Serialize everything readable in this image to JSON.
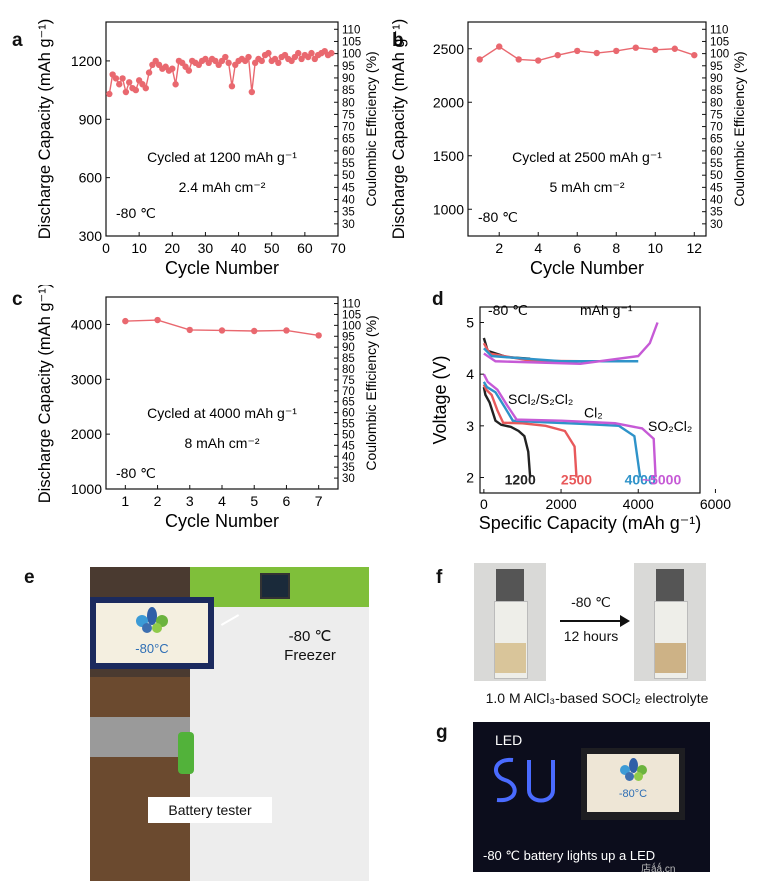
{
  "panel_labels": {
    "a": "a",
    "b": "b",
    "c": "c",
    "d": "d",
    "e": "e",
    "f": "f",
    "g": "g"
  },
  "colors": {
    "series": "#e9686f",
    "black": "#222222",
    "red": "#e8595b",
    "blue": "#2f93c9",
    "magenta": "#c65ad6"
  },
  "chart_data": [
    {
      "panel": "a",
      "type": "scatter",
      "xlabel": "Cycle Number",
      "ylabel": "Discharge Capacity (mAh g⁻¹)",
      "ylabel2": "Coulombic Efficiency (%)",
      "xlim": [
        0,
        70
      ],
      "ylim": [
        300,
        1400
      ],
      "y2lim": [
        25,
        113
      ],
      "xticks": [
        "0",
        "10",
        "20",
        "30",
        "40",
        "50",
        "60",
        "70"
      ],
      "yticks": [
        "300",
        "600",
        "900",
        "1200"
      ],
      "y2ticks": [
        "30",
        "35",
        "40",
        "45",
        "50",
        "55",
        "60",
        "65",
        "70",
        "75",
        "80",
        "85",
        "90",
        "95",
        "100",
        "105",
        "110"
      ],
      "annotations": [
        "Cycled at 1200 mAh g⁻¹",
        "2.4 mAh cm⁻²",
        "-80 ℃"
      ],
      "x": [
        1,
        2,
        3,
        4,
        5,
        6,
        7,
        8,
        9,
        10,
        11,
        12,
        13,
        14,
        15,
        16,
        17,
        18,
        19,
        20,
        21,
        22,
        23,
        24,
        25,
        26,
        27,
        28,
        29,
        30,
        31,
        32,
        33,
        34,
        35,
        36,
        37,
        38,
        39,
        40,
        41,
        42,
        43,
        44,
        45,
        46,
        47,
        48,
        49,
        50,
        51,
        52,
        53,
        54,
        55,
        56,
        57,
        58,
        59,
        60,
        61,
        62,
        63,
        64,
        65,
        66,
        67,
        68
      ],
      "y": [
        1030,
        1130,
        1110,
        1080,
        1110,
        1040,
        1090,
        1060,
        1050,
        1100,
        1080,
        1060,
        1140,
        1180,
        1200,
        1180,
        1160,
        1170,
        1150,
        1160,
        1080,
        1200,
        1190,
        1170,
        1150,
        1200,
        1190,
        1180,
        1200,
        1210,
        1190,
        1210,
        1200,
        1180,
        1200,
        1220,
        1190,
        1070,
        1180,
        1200,
        1210,
        1200,
        1220,
        1040,
        1190,
        1210,
        1200,
        1230,
        1240,
        1200,
        1210,
        1190,
        1220,
        1230,
        1210,
        1200,
        1220,
        1240,
        1210,
        1230,
        1220,
        1240,
        1210,
        1230,
        1240,
        1250,
        1230,
        1240
      ]
    },
    {
      "panel": "b",
      "type": "line",
      "xlabel": "Cycle Number",
      "ylabel": "Discharge Capacity (mAh g⁻¹)",
      "ylabel2": "Coulombic Efficiency (%)",
      "xlim": [
        0.4,
        12.6
      ],
      "ylim": [
        750,
        2750
      ],
      "y2lim": [
        25,
        113
      ],
      "xticks": [
        "2",
        "4",
        "6",
        "8",
        "10",
        "12"
      ],
      "yticks": [
        "1000",
        "1500",
        "2000",
        "2500"
      ],
      "y2ticks": [
        "30",
        "35",
        "40",
        "45",
        "50",
        "55",
        "60",
        "65",
        "70",
        "75",
        "80",
        "85",
        "90",
        "95",
        "100",
        "105",
        "110"
      ],
      "annotations": [
        "Cycled at 2500 mAh g⁻¹",
        "5 mAh cm⁻²",
        "-80 ℃"
      ],
      "x": [
        1,
        2,
        3,
        4,
        5,
        6,
        7,
        8,
        9,
        10,
        11,
        12
      ],
      "y": [
        2400,
        2520,
        2400,
        2390,
        2440,
        2480,
        2460,
        2480,
        2510,
        2490,
        2500,
        2440
      ]
    },
    {
      "panel": "c",
      "type": "line",
      "xlabel": "Cycle Number",
      "ylabel": "Discharge Capacity (mAh g⁻¹)",
      "ylabel2": "Coulombic Efficiency (%)",
      "xlim": [
        0.4,
        7.6
      ],
      "ylim": [
        1000,
        4500
      ],
      "y2lim": [
        25,
        113
      ],
      "xticks": [
        "1",
        "2",
        "3",
        "4",
        "5",
        "6",
        "7"
      ],
      "yticks": [
        "1000",
        "2000",
        "3000",
        "4000"
      ],
      "y2ticks": [
        "30",
        "35",
        "40",
        "45",
        "50",
        "55",
        "60",
        "65",
        "70",
        "75",
        "80",
        "85",
        "90",
        "95",
        "100",
        "105",
        "110"
      ],
      "annotations": [
        "Cycled at 4000 mAh g⁻¹",
        "8 mAh cm⁻²",
        "-80 ℃"
      ],
      "x": [
        1,
        2,
        3,
        4,
        5,
        6,
        7
      ],
      "y": [
        4060,
        4080,
        3900,
        3890,
        3880,
        3890,
        3800
      ]
    },
    {
      "panel": "d",
      "type": "line",
      "xlabel": "Specific Capacity (mAh g⁻¹)",
      "ylabel": "Voltage (V)",
      "xlim": [
        -100,
        5600
      ],
      "ylim": [
        1.7,
        5.3
      ],
      "xticks": [
        "0",
        "2000",
        "4000",
        "6000"
      ],
      "yticks": [
        "2",
        "3",
        "4",
        "5"
      ],
      "annotations": [
        "-80 ℃",
        "mAh g⁻¹",
        "SCl₂/S₂Cl₂",
        "Cl₂",
        "SO₂Cl₂"
      ],
      "series": [
        {
          "name": "1200",
          "color": "#222222",
          "discharge": [
            [
              0,
              3.75
            ],
            [
              40,
              3.6
            ],
            [
              150,
              3.45
            ],
            [
              300,
              3.1
            ],
            [
              450,
              3.02
            ],
            [
              700,
              2.98
            ],
            [
              900,
              2.9
            ],
            [
              1050,
              2.8
            ],
            [
              1150,
              2.5
            ],
            [
              1200,
              2.0
            ]
          ],
          "charge": [
            [
              0,
              4.7
            ],
            [
              100,
              4.45
            ],
            [
              600,
              4.33
            ],
            [
              1200,
              4.3
            ]
          ]
        },
        {
          "name": "2500",
          "color": "#e8595b",
          "discharge": [
            [
              0,
              3.8
            ],
            [
              60,
              3.7
            ],
            [
              200,
              3.6
            ],
            [
              350,
              3.3
            ],
            [
              500,
              3.06
            ],
            [
              1000,
              3.05
            ],
            [
              1600,
              3.0
            ],
            [
              2100,
              2.9
            ],
            [
              2350,
              2.6
            ],
            [
              2400,
              2.0
            ]
          ],
          "charge": [
            [
              0,
              4.6
            ],
            [
              150,
              4.4
            ],
            [
              1200,
              4.26
            ],
            [
              2500,
              4.25
            ]
          ]
        },
        {
          "name": "4000",
          "color": "#2f93c9",
          "discharge": [
            [
              0,
              3.85
            ],
            [
              80,
              3.75
            ],
            [
              300,
              3.65
            ],
            [
              550,
              3.35
            ],
            [
              750,
              3.1
            ],
            [
              1500,
              3.07
            ],
            [
              2500,
              3.04
            ],
            [
              3500,
              3.0
            ],
            [
              3900,
              2.8
            ],
            [
              4050,
              2.0
            ]
          ],
          "charge": [
            [
              0,
              4.5
            ],
            [
              200,
              4.35
            ],
            [
              2000,
              4.25
            ],
            [
              4000,
              4.25
            ]
          ]
        },
        {
          "name": "~5000",
          "color": "#c65ad6",
          "discharge": [
            [
              0,
              4.0
            ],
            [
              100,
              3.85
            ],
            [
              350,
              3.7
            ],
            [
              600,
              3.4
            ],
            [
              850,
              3.12
            ],
            [
              2000,
              3.1
            ],
            [
              3400,
              3.05
            ],
            [
              4100,
              2.95
            ],
            [
              4400,
              2.75
            ],
            [
              4450,
              2.0
            ]
          ],
          "charge": [
            [
              0,
              4.4
            ],
            [
              300,
              4.25
            ],
            [
              2500,
              4.2
            ],
            [
              4000,
              4.35
            ],
            [
              4300,
              4.6
            ],
            [
              4500,
              5.0
            ]
          ]
        }
      ]
    }
  ],
  "photo_e": {
    "screen_caption": "-80°C",
    "freezer_label_1": "-80 ℃",
    "freezer_label_2": "Freezer",
    "tester_label": "Battery tester"
  },
  "photo_f": {
    "arrow_top": "-80 ℃",
    "arrow_bottom": "12 hours",
    "caption": "1.0 M AlCl₃-based SOCl₂ electrolyte"
  },
  "photo_g": {
    "led_label": "LED",
    "screen_caption": "-80°C",
    "caption": "-80 ℃ battery lights up a LED",
    "watermark": "店ǻǻ.cn"
  }
}
